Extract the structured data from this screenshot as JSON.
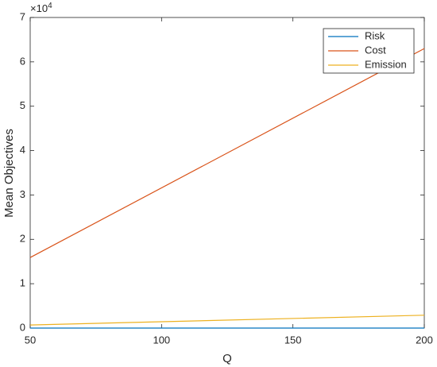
{
  "chart_data": {
    "type": "line",
    "x_label": "Q",
    "y_label": "Mean Objectives",
    "y_multiplier": {
      "base": "×10",
      "exponent": "4"
    },
    "x": [
      50,
      200
    ],
    "series": [
      {
        "name": "Risk",
        "color": "#0072BD",
        "values": [
          0,
          0
        ]
      },
      {
        "name": "Cost",
        "color": "#D95319",
        "values": [
          1.59,
          6.3
        ]
      },
      {
        "name": "Emission",
        "color": "#EDB120",
        "values": [
          0.07,
          0.29
        ]
      }
    ],
    "xlim": [
      50,
      200
    ],
    "xticks": [
      50,
      100,
      150,
      200
    ],
    "ylim": [
      0,
      7
    ],
    "yticks": [
      0,
      1,
      2,
      3,
      4,
      5,
      6,
      7
    ],
    "legend": "top-right",
    "grid": false
  }
}
